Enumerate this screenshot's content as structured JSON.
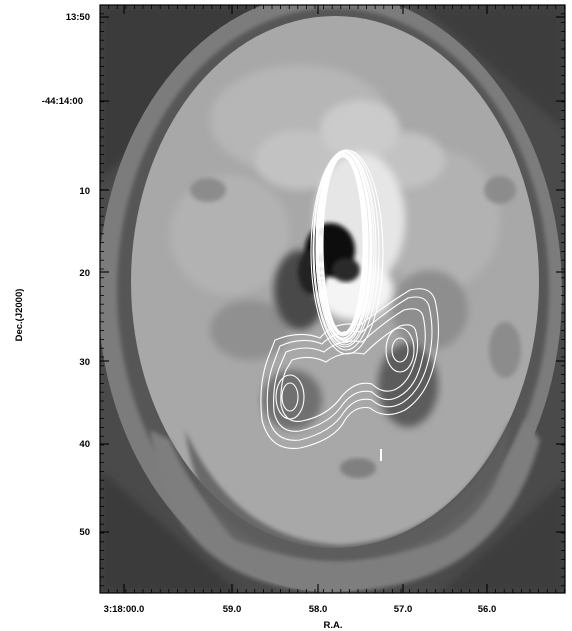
{
  "figure": {
    "type": "astronomical-image-with-contours",
    "xlabel": "R.A.",
    "ylabel": "Dec.(J2000)",
    "x_ticks": [
      {
        "label": "3:18:00.0",
        "ra_seconds": 60.0
      },
      {
        "label": "59.0",
        "ra_seconds": 59.0
      },
      {
        "label": "58.0",
        "ra_seconds": 58.0
      },
      {
        "label": "57.0",
        "ra_seconds": 57.0
      },
      {
        "label": "56.0",
        "ra_seconds": 56.0
      }
    ],
    "y_ticks": [
      {
        "label": "13:50",
        "dec_arcsec": -10
      },
      {
        "label": "-44:14:00",
        "dec_arcsec": 0
      },
      {
        "label": "10",
        "dec_arcsec": 10
      },
      {
        "label": "20",
        "dec_arcsec": 20
      },
      {
        "label": "30",
        "dec_arcsec": 30
      },
      {
        "label": "40",
        "dec_arcsec": 40
      },
      {
        "label": "50",
        "dec_arcsec": 50
      }
    ],
    "colors": {
      "background_dark": "#4a4a4a",
      "ring_mid": "#7d7d7d",
      "disk_light": "#a9a9a9",
      "center_bright": "#d5d5d5",
      "contour": "#ffffff",
      "nucleus_dark": "#000000"
    }
  }
}
